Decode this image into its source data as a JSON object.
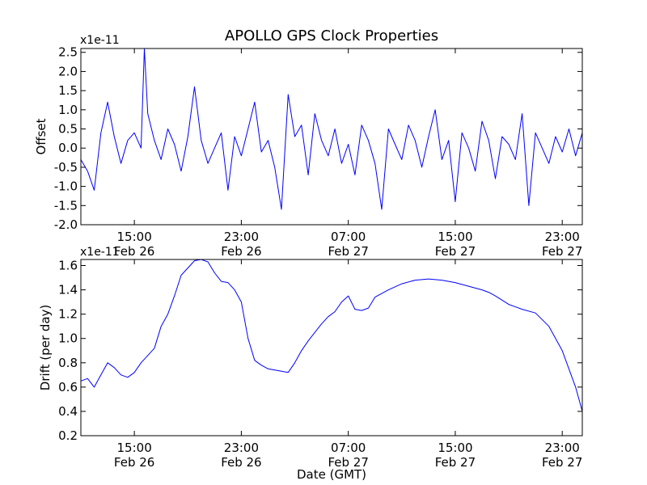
{
  "figure": {
    "title": "APOLLO GPS Clock Properties",
    "xlabel": "Date (GMT)"
  },
  "chart_data": [
    {
      "type": "line",
      "ylabel": "Offset",
      "scale_label": "x1e-11",
      "ylim": [
        -2.0,
        2.6
      ],
      "xlim": [
        "2013-02-26 11:00",
        "2013-02-28 00:30"
      ],
      "xticks": [
        {
          "time": "2013-02-26 15:00",
          "label_time": "15:00",
          "label_date": "Feb 26"
        },
        {
          "time": "2013-02-26 23:00",
          "label_time": "23:00",
          "label_date": "Feb 26"
        },
        {
          "time": "2013-02-27 07:00",
          "label_time": "07:00",
          "label_date": "Feb 27"
        },
        {
          "time": "2013-02-27 15:00",
          "label_time": "15:00",
          "label_date": "Feb 27"
        },
        {
          "time": "2013-02-27 23:00",
          "label_time": "23:00",
          "label_date": "Feb 27"
        }
      ],
      "yticks": [
        {
          "value": 2.5,
          "label": "2.5"
        },
        {
          "value": 2.0,
          "label": "2.0"
        },
        {
          "value": 1.5,
          "label": "1.5"
        },
        {
          "value": 1.0,
          "label": "1.0"
        },
        {
          "value": 0.5,
          "label": "0.5"
        },
        {
          "value": 0.0,
          "label": "0.0"
        },
        {
          "value": -0.5,
          "label": "-0.5"
        },
        {
          "value": -1.0,
          "label": "-1.0"
        },
        {
          "value": -1.5,
          "label": "-1.5"
        },
        {
          "value": -2.0,
          "label": "-2.0"
        }
      ],
      "grid": false,
      "series_color": "#0000ff",
      "x": [
        "2013-02-26 11:00",
        "2013-02-26 11:30",
        "2013-02-26 12:00",
        "2013-02-26 12:30",
        "2013-02-26 13:00",
        "2013-02-26 13:30",
        "2013-02-26 14:00",
        "2013-02-26 14:30",
        "2013-02-26 15:00",
        "2013-02-26 15:30",
        "2013-02-26 15:45",
        "2013-02-26 16:00",
        "2013-02-26 16:30",
        "2013-02-26 17:00",
        "2013-02-26 17:30",
        "2013-02-26 18:00",
        "2013-02-26 18:30",
        "2013-02-26 19:00",
        "2013-02-26 19:30",
        "2013-02-26 20:00",
        "2013-02-26 20:30",
        "2013-02-26 21:00",
        "2013-02-26 21:30",
        "2013-02-26 22:00",
        "2013-02-26 22:30",
        "2013-02-26 23:00",
        "2013-02-26 23:30",
        "2013-02-27 00:00",
        "2013-02-27 00:30",
        "2013-02-27 01:00",
        "2013-02-27 01:30",
        "2013-02-27 02:00",
        "2013-02-27 02:30",
        "2013-02-27 03:00",
        "2013-02-27 03:30",
        "2013-02-27 04:00",
        "2013-02-27 04:30",
        "2013-02-27 05:00",
        "2013-02-27 05:30",
        "2013-02-27 06:00",
        "2013-02-27 06:30",
        "2013-02-27 07:00",
        "2013-02-27 07:30",
        "2013-02-27 08:00",
        "2013-02-27 08:30",
        "2013-02-27 09:00",
        "2013-02-27 09:30",
        "2013-02-27 10:00",
        "2013-02-27 10:30",
        "2013-02-27 11:00",
        "2013-02-27 11:30",
        "2013-02-27 12:00",
        "2013-02-27 12:30",
        "2013-02-27 13:00",
        "2013-02-27 13:30",
        "2013-02-27 14:00",
        "2013-02-27 14:30",
        "2013-02-27 15:00",
        "2013-02-27 15:30",
        "2013-02-27 16:00",
        "2013-02-27 16:30",
        "2013-02-27 17:00",
        "2013-02-27 17:30",
        "2013-02-27 18:00",
        "2013-02-27 18:30",
        "2013-02-27 19:00",
        "2013-02-27 19:30",
        "2013-02-27 20:00",
        "2013-02-27 20:30",
        "2013-02-27 21:00",
        "2013-02-27 21:30",
        "2013-02-27 22:00",
        "2013-02-27 22:30",
        "2013-02-27 23:00",
        "2013-02-27 23:30",
        "2013-02-28 00:00",
        "2013-02-28 00:30"
      ],
      "values": [
        -0.3,
        -0.6,
        -1.1,
        0.4,
        1.2,
        0.3,
        -0.4,
        0.2,
        0.4,
        0.0,
        2.6,
        0.9,
        0.2,
        -0.3,
        0.5,
        0.1,
        -0.6,
        0.3,
        1.6,
        0.2,
        -0.4,
        0.0,
        0.4,
        -1.1,
        0.3,
        -0.2,
        0.5,
        1.2,
        -0.1,
        0.2,
        -0.5,
        -1.6,
        1.4,
        0.3,
        0.6,
        -0.7,
        0.9,
        0.2,
        -0.2,
        0.5,
        -0.4,
        0.1,
        -0.7,
        0.6,
        0.2,
        -0.4,
        -1.6,
        0.5,
        0.1,
        -0.3,
        0.6,
        0.2,
        -0.5,
        0.3,
        1.0,
        -0.3,
        0.2,
        -1.4,
        0.4,
        0.0,
        -0.6,
        0.7,
        0.2,
        -0.8,
        0.3,
        0.1,
        -0.3,
        0.9,
        -1.5,
        0.4,
        0.0,
        -0.4,
        0.3,
        -0.1,
        0.5,
        -0.2,
        0.4
      ]
    },
    {
      "type": "line",
      "ylabel": "Drift (per day)",
      "scale_label": "x1e-11",
      "ylim": [
        0.2,
        1.65
      ],
      "xlim": [
        "2013-02-26 11:00",
        "2013-02-28 00:30"
      ],
      "xticks": [
        {
          "time": "2013-02-26 15:00",
          "label_time": "15:00",
          "label_date": "Feb 26"
        },
        {
          "time": "2013-02-26 23:00",
          "label_time": "23:00",
          "label_date": "Feb 26"
        },
        {
          "time": "2013-02-27 07:00",
          "label_time": "07:00",
          "label_date": "Feb 27"
        },
        {
          "time": "2013-02-27 15:00",
          "label_time": "15:00",
          "label_date": "Feb 27"
        },
        {
          "time": "2013-02-27 23:00",
          "label_time": "23:00",
          "label_date": "Feb 27"
        }
      ],
      "yticks": [
        {
          "value": 1.6,
          "label": "1.6"
        },
        {
          "value": 1.4,
          "label": "1.4"
        },
        {
          "value": 1.2,
          "label": "1.2"
        },
        {
          "value": 1.0,
          "label": "1.0"
        },
        {
          "value": 0.8,
          "label": "0.8"
        },
        {
          "value": 0.6,
          "label": "0.6"
        },
        {
          "value": 0.4,
          "label": "0.4"
        },
        {
          "value": 0.2,
          "label": "0.2"
        }
      ],
      "grid": false,
      "series_color": "#0000ff",
      "x": [
        "2013-02-26 11:00",
        "2013-02-26 11:30",
        "2013-02-26 12:00",
        "2013-02-26 12:30",
        "2013-02-26 13:00",
        "2013-02-26 13:30",
        "2013-02-26 14:00",
        "2013-02-26 14:30",
        "2013-02-26 15:00",
        "2013-02-26 15:30",
        "2013-02-26 16:00",
        "2013-02-26 16:30",
        "2013-02-26 17:00",
        "2013-02-26 17:30",
        "2013-02-26 18:00",
        "2013-02-26 18:30",
        "2013-02-26 19:00",
        "2013-02-26 19:30",
        "2013-02-26 20:00",
        "2013-02-26 20:30",
        "2013-02-26 21:00",
        "2013-02-26 21:30",
        "2013-02-26 22:00",
        "2013-02-26 22:30",
        "2013-02-26 23:00",
        "2013-02-26 23:30",
        "2013-02-27 00:00",
        "2013-02-27 00:30",
        "2013-02-27 01:00",
        "2013-02-27 01:30",
        "2013-02-27 02:00",
        "2013-02-27 02:30",
        "2013-02-27 03:00",
        "2013-02-27 03:30",
        "2013-02-27 04:00",
        "2013-02-27 04:30",
        "2013-02-27 05:00",
        "2013-02-27 05:30",
        "2013-02-27 06:00",
        "2013-02-27 06:30",
        "2013-02-27 07:00",
        "2013-02-27 07:30",
        "2013-02-27 08:00",
        "2013-02-27 08:30",
        "2013-02-27 09:00",
        "2013-02-27 09:30",
        "2013-02-27 10:00",
        "2013-02-27 11:00",
        "2013-02-27 12:00",
        "2013-02-27 13:00",
        "2013-02-27 14:00",
        "2013-02-27 15:00",
        "2013-02-27 16:00",
        "2013-02-27 17:00",
        "2013-02-27 17:30",
        "2013-02-27 18:00",
        "2013-02-27 19:00",
        "2013-02-27 20:00",
        "2013-02-27 21:00",
        "2013-02-27 22:00",
        "2013-02-27 23:00",
        "2013-02-28 00:00",
        "2013-02-28 00:30"
      ],
      "values": [
        0.65,
        0.67,
        0.6,
        0.7,
        0.8,
        0.76,
        0.7,
        0.68,
        0.72,
        0.8,
        0.86,
        0.92,
        1.1,
        1.2,
        1.35,
        1.52,
        1.58,
        1.64,
        1.65,
        1.63,
        1.54,
        1.47,
        1.46,
        1.4,
        1.3,
        1.0,
        0.82,
        0.78,
        0.75,
        0.74,
        0.73,
        0.72,
        0.8,
        0.9,
        0.98,
        1.05,
        1.12,
        1.18,
        1.22,
        1.3,
        1.35,
        1.24,
        1.23,
        1.25,
        1.34,
        1.37,
        1.4,
        1.45,
        1.48,
        1.49,
        1.48,
        1.46,
        1.43,
        1.4,
        1.38,
        1.35,
        1.28,
        1.24,
        1.21,
        1.1,
        0.9,
        0.6,
        0.4
      ]
    }
  ]
}
